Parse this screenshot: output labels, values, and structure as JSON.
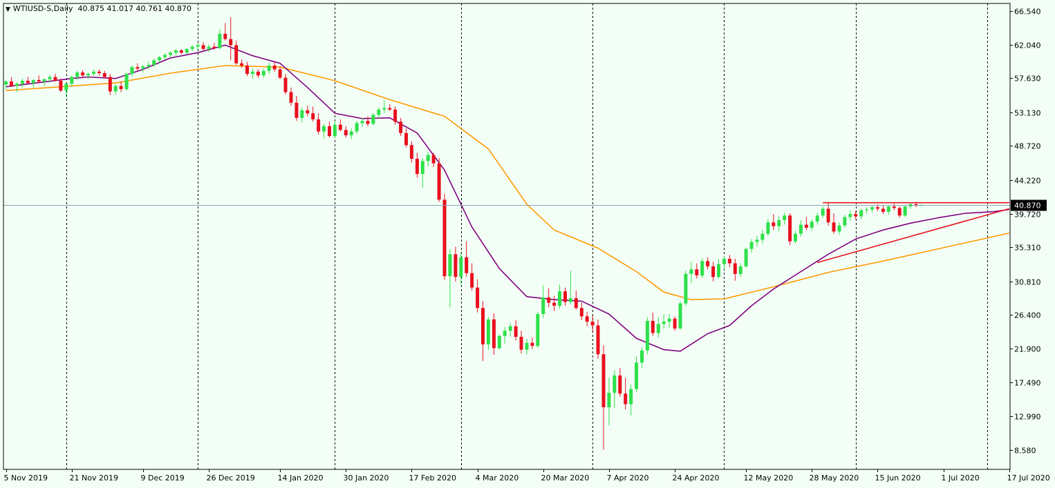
{
  "header": {
    "symbol_label": "WTIUSD-S,Daily",
    "ohlc": "40.875 41.017 40.761 40.870"
  },
  "colors": {
    "background": "#f3fff6",
    "bull": "#2fe04a",
    "bear": "#e8101e",
    "ma_fast": "#800080",
    "ma_slow": "#ff9900",
    "trendline": "#e8101e",
    "bid_line": "#8aa4b8",
    "axis": "#000000"
  },
  "chart_data": {
    "type": "candlestick",
    "y_ticks": [
      "66.540",
      "62.040",
      "57.630",
      "53.130",
      "48.720",
      "44.220",
      "39.720",
      "35.310",
      "30.810",
      "26.400",
      "21.900",
      "17.490",
      "12.990",
      "8.580"
    ],
    "ylim": [
      6.0,
      67.5
    ],
    "x_labels": [
      "5 Nov 2019",
      "21 Nov 2019",
      "9 Dec 2019",
      "26 Dec 2019",
      "14 Jan 2020",
      "30 Jan 2020",
      "17 Feb 2020",
      "4 Mar 2020",
      "20 Mar 2020",
      "7 Apr 2020",
      "24 Apr 2020",
      "12 May 2020",
      "28 May 2020",
      "15 Jun 2020",
      "1 Jul 2020",
      "17 Jul 2020"
    ],
    "label_index": [
      0,
      12,
      25,
      37,
      50,
      62,
      74,
      86,
      98,
      110,
      122,
      135,
      147,
      159,
      171,
      183
    ],
    "period_separator_index": [
      11,
      35,
      60,
      83,
      107,
      131,
      155,
      179
    ],
    "current_price": "40.870",
    "candles_ohlc": [
      [
        56.8,
        57.4,
        56.2,
        57.2
      ],
      [
        57.2,
        57.8,
        56.5,
        56.6
      ],
      [
        56.6,
        57.1,
        55.8,
        56.9
      ],
      [
        56.9,
        57.6,
        56.4,
        57.3
      ],
      [
        57.3,
        57.8,
        56.9,
        57.0
      ],
      [
        57.0,
        57.5,
        56.4,
        57.4
      ],
      [
        57.4,
        58.0,
        57.0,
        57.2
      ],
      [
        57.2,
        57.6,
        56.6,
        57.5
      ],
      [
        57.5,
        58.1,
        57.1,
        57.8
      ],
      [
        57.8,
        58.2,
        57.2,
        57.3
      ],
      [
        57.3,
        57.6,
        55.8,
        56.0
      ],
      [
        56.0,
        57.0,
        55.1,
        56.9
      ],
      [
        56.9,
        58.0,
        56.5,
        57.8
      ],
      [
        57.8,
        58.6,
        57.4,
        58.4
      ],
      [
        58.4,
        58.7,
        57.8,
        58.0
      ],
      [
        58.0,
        58.4,
        57.5,
        58.2
      ],
      [
        58.2,
        58.8,
        57.9,
        58.5
      ],
      [
        58.5,
        58.8,
        58.0,
        58.3
      ],
      [
        58.3,
        58.6,
        57.6,
        57.8
      ],
      [
        57.8,
        58.2,
        55.4,
        55.9
      ],
      [
        55.9,
        56.8,
        55.5,
        56.6
      ],
      [
        56.6,
        57.2,
        55.8,
        56.2
      ],
      [
        56.2,
        58.4,
        56.0,
        58.2
      ],
      [
        58.2,
        59.3,
        57.8,
        59.1
      ],
      [
        59.1,
        59.6,
        58.6,
        58.9
      ],
      [
        58.9,
        59.4,
        58.4,
        59.2
      ],
      [
        59.2,
        59.8,
        58.8,
        59.4
      ],
      [
        59.4,
        60.2,
        59.1,
        60.0
      ],
      [
        60.0,
        60.6,
        59.7,
        60.4
      ],
      [
        60.4,
        60.9,
        60.1,
        60.7
      ],
      [
        60.7,
        61.2,
        60.4,
        61.0
      ],
      [
        61.0,
        61.5,
        60.6,
        61.3
      ],
      [
        61.3,
        61.5,
        60.8,
        61.0
      ],
      [
        61.0,
        61.6,
        60.8,
        61.5
      ],
      [
        61.5,
        62.0,
        61.2,
        61.8
      ],
      [
        61.8,
        62.3,
        61.5,
        62.0
      ],
      [
        62.0,
        62.4,
        61.3,
        61.5
      ],
      [
        61.5,
        62.1,
        61.1,
        61.8
      ],
      [
        61.8,
        62.3,
        61.4,
        61.6
      ],
      [
        61.6,
        64.1,
        61.5,
        63.5
      ],
      [
        63.5,
        64.9,
        62.6,
        62.8
      ],
      [
        62.8,
        65.7,
        60.0,
        62.0
      ],
      [
        62.0,
        62.6,
        59.4,
        59.6
      ],
      [
        59.6,
        60.1,
        59.0,
        59.3
      ],
      [
        59.3,
        59.8,
        57.9,
        58.2
      ],
      [
        58.2,
        58.9,
        57.6,
        58.5
      ],
      [
        58.5,
        58.8,
        57.7,
        58.0
      ],
      [
        58.0,
        58.9,
        57.7,
        58.6
      ],
      [
        58.6,
        59.7,
        58.2,
        59.3
      ],
      [
        59.3,
        59.8,
        58.5,
        58.8
      ],
      [
        58.8,
        59.2,
        57.5,
        57.7
      ],
      [
        57.7,
        58.2,
        55.5,
        55.8
      ],
      [
        55.8,
        56.4,
        54.0,
        54.4
      ],
      [
        54.4,
        55.3,
        52.0,
        52.4
      ],
      [
        52.4,
        53.8,
        51.8,
        53.4
      ],
      [
        53.4,
        54.0,
        52.6,
        53.0
      ],
      [
        53.0,
        53.9,
        51.9,
        52.2
      ],
      [
        52.2,
        53.0,
        50.2,
        50.6
      ],
      [
        50.6,
        51.6,
        49.7,
        51.3
      ],
      [
        51.3,
        51.9,
        49.8,
        50.0
      ],
      [
        50.0,
        52.0,
        49.7,
        51.5
      ],
      [
        51.5,
        52.2,
        50.6,
        50.8
      ],
      [
        50.8,
        51.3,
        49.8,
        50.1
      ],
      [
        50.1,
        51.0,
        49.6,
        50.6
      ],
      [
        50.6,
        52.0,
        50.3,
        51.7
      ],
      [
        51.7,
        52.4,
        51.2,
        52.0
      ],
      [
        52.0,
        52.6,
        51.3,
        51.6
      ],
      [
        51.6,
        53.0,
        51.4,
        52.8
      ],
      [
        52.8,
        53.8,
        52.3,
        53.5
      ],
      [
        53.5,
        54.7,
        53.0,
        53.7
      ],
      [
        53.7,
        54.2,
        53.3,
        53.5
      ],
      [
        53.5,
        53.9,
        51.5,
        51.9
      ],
      [
        51.9,
        52.4,
        50.0,
        50.4
      ],
      [
        50.4,
        51.0,
        48.5,
        48.8
      ],
      [
        48.8,
        49.3,
        46.5,
        47.0
      ],
      [
        47.0,
        47.8,
        44.5,
        45.0
      ],
      [
        45.0,
        47.1,
        43.2,
        46.7
      ],
      [
        46.7,
        47.9,
        46.0,
        47.5
      ],
      [
        47.5,
        47.8,
        45.9,
        46.4
      ],
      [
        46.4,
        47.1,
        41.3,
        41.6
      ],
      [
        41.6,
        42.4,
        31.0,
        31.5
      ],
      [
        31.5,
        35.1,
        27.4,
        34.4
      ],
      [
        34.4,
        35.4,
        30.8,
        31.4
      ],
      [
        31.4,
        34.6,
        30.4,
        34.0
      ],
      [
        34.0,
        36.1,
        31.4,
        31.9
      ],
      [
        31.9,
        33.2,
        29.6,
        30.0
      ],
      [
        30.0,
        31.1,
        26.7,
        27.3
      ],
      [
        27.3,
        28.2,
        20.3,
        22.5
      ],
      [
        22.5,
        26.1,
        21.8,
        25.8
      ],
      [
        25.8,
        26.6,
        21.1,
        22.0
      ],
      [
        22.0,
        23.8,
        21.8,
        23.6
      ],
      [
        23.6,
        24.8,
        22.6,
        24.3
      ],
      [
        24.3,
        25.3,
        23.5,
        24.9
      ],
      [
        24.9,
        25.7,
        23.0,
        23.5
      ],
      [
        23.5,
        24.3,
        21.3,
        21.8
      ],
      [
        21.8,
        23.2,
        21.2,
        22.7
      ],
      [
        22.7,
        23.4,
        21.9,
        22.3
      ],
      [
        22.3,
        26.8,
        22.0,
        26.5
      ],
      [
        26.5,
        30.3,
        26.0,
        28.7
      ],
      [
        28.7,
        29.9,
        27.4,
        28.0
      ],
      [
        28.0,
        28.9,
        26.9,
        27.6
      ],
      [
        27.6,
        30.4,
        27.2,
        29.5
      ],
      [
        29.5,
        30.0,
        27.6,
        28.1
      ],
      [
        28.1,
        32.2,
        27.8,
        28.6
      ],
      [
        28.6,
        29.6,
        27.1,
        27.3
      ],
      [
        27.3,
        28.0,
        25.7,
        26.2
      ],
      [
        26.2,
        26.8,
        24.9,
        25.5
      ],
      [
        25.5,
        26.3,
        24.2,
        25.0
      ],
      [
        25.0,
        25.8,
        20.6,
        21.2
      ],
      [
        21.2,
        22.4,
        8.6,
        14.2
      ],
      [
        14.2,
        18.1,
        11.8,
        16.1
      ],
      [
        16.1,
        19.1,
        14.1,
        18.4
      ],
      [
        18.4,
        19.4,
        15.6,
        16.0
      ],
      [
        16.0,
        18.1,
        13.9,
        14.6
      ],
      [
        14.6,
        17.2,
        13.1,
        16.6
      ],
      [
        16.6,
        20.9,
        16.2,
        20.1
      ],
      [
        20.1,
        22.1,
        19.4,
        21.7
      ],
      [
        21.7,
        26.1,
        21.2,
        25.6
      ],
      [
        25.6,
        26.7,
        23.6,
        24.0
      ],
      [
        24.0,
        26.1,
        23.4,
        25.2
      ],
      [
        25.2,
        26.5,
        24.6,
        25.5
      ],
      [
        25.5,
        26.5,
        24.7,
        25.9
      ],
      [
        25.9,
        26.2,
        24.3,
        24.6
      ],
      [
        24.6,
        28.2,
        24.4,
        27.9
      ],
      [
        27.9,
        32.2,
        27.6,
        31.8
      ],
      [
        31.8,
        33.4,
        30.6,
        32.4
      ],
      [
        32.4,
        33.2,
        31.2,
        31.6
      ],
      [
        31.6,
        33.9,
        31.3,
        33.5
      ],
      [
        33.5,
        34.0,
        32.4,
        32.8
      ],
      [
        32.8,
        33.4,
        30.8,
        31.4
      ],
      [
        31.4,
        33.8,
        31.2,
        33.1
      ],
      [
        33.1,
        34.2,
        32.4,
        33.8
      ],
      [
        33.8,
        34.3,
        32.7,
        33.2
      ],
      [
        33.2,
        33.8,
        30.9,
        31.8
      ],
      [
        31.8,
        33.2,
        31.4,
        32.8
      ],
      [
        32.8,
        35.3,
        32.6,
        35.1
      ],
      [
        35.1,
        36.4,
        34.6,
        36.0
      ],
      [
        36.0,
        36.8,
        35.4,
        36.3
      ],
      [
        36.3,
        37.6,
        35.8,
        37.1
      ],
      [
        37.1,
        39.1,
        36.8,
        38.6
      ],
      [
        38.6,
        39.7,
        37.6,
        38.1
      ],
      [
        38.1,
        39.4,
        37.4,
        38.9
      ],
      [
        38.9,
        39.9,
        38.3,
        39.5
      ],
      [
        39.5,
        39.8,
        35.6,
        36.1
      ],
      [
        36.1,
        37.5,
        35.8,
        37.1
      ],
      [
        37.1,
        38.9,
        36.7,
        38.3
      ],
      [
        38.3,
        39.3,
        37.6,
        37.9
      ],
      [
        37.9,
        39.0,
        37.5,
        38.7
      ],
      [
        38.7,
        39.9,
        38.3,
        39.5
      ],
      [
        39.5,
        40.7,
        39.2,
        40.4
      ],
      [
        40.4,
        41.2,
        38.2,
        38.6
      ],
      [
        38.6,
        39.8,
        37.1,
        37.4
      ],
      [
        37.4,
        38.6,
        37.0,
        38.2
      ],
      [
        38.2,
        39.6,
        37.9,
        39.3
      ],
      [
        39.3,
        40.2,
        38.8,
        39.7
      ],
      [
        39.7,
        40.1,
        39.0,
        39.4
      ],
      [
        39.4,
        40.4,
        39.0,
        40.2
      ],
      [
        40.2,
        40.6,
        39.8,
        40.3
      ],
      [
        40.3,
        40.8,
        39.9,
        40.6
      ],
      [
        40.6,
        41.0,
        40.1,
        40.4
      ],
      [
        40.4,
        40.8,
        39.7,
        40.0
      ],
      [
        40.0,
        40.9,
        39.6,
        40.7
      ],
      [
        40.7,
        41.1,
        40.2,
        40.5
      ],
      [
        40.5,
        40.7,
        39.2,
        39.5
      ],
      [
        39.5,
        40.9,
        39.3,
        40.7
      ],
      [
        40.7,
        41.2,
        40.4,
        41.0
      ],
      [
        41.0,
        41.3,
        40.6,
        40.8
      ],
      [
        40.8,
        41.0,
        40.7,
        40.9
      ]
    ],
    "ma_fast_points": [
      [
        0,
        56.5
      ],
      [
        12,
        57.6
      ],
      [
        15,
        57.8
      ],
      [
        20,
        57.6
      ],
      [
        25,
        58.8
      ],
      [
        30,
        60.3
      ],
      [
        35,
        61.0
      ],
      [
        40,
        62.0
      ],
      [
        45,
        60.6
      ],
      [
        50,
        59.6
      ],
      [
        55,
        56.4
      ],
      [
        60,
        53.0
      ],
      [
        65,
        52.3
      ],
      [
        70,
        52.4
      ],
      [
        75,
        50.4
      ],
      [
        80,
        45.5
      ],
      [
        85,
        38.0
      ],
      [
        90,
        32.5
      ],
      [
        95,
        28.8
      ],
      [
        100,
        28.4
      ],
      [
        105,
        28.2
      ],
      [
        110,
        26.5
      ],
      [
        115,
        23.3
      ],
      [
        120,
        21.8
      ],
      [
        123,
        21.6
      ],
      [
        128,
        23.9
      ],
      [
        132,
        25.0
      ],
      [
        136,
        27.6
      ],
      [
        140,
        29.8
      ],
      [
        145,
        32.1
      ],
      [
        150,
        34.4
      ],
      [
        155,
        36.4
      ],
      [
        160,
        37.6
      ],
      [
        165,
        38.5
      ],
      [
        170,
        39.2
      ],
      [
        175,
        39.8
      ],
      [
        180,
        40.0
      ],
      [
        183,
        40.3
      ]
    ],
    "ma_slow_points": [
      [
        0,
        56.0
      ],
      [
        10,
        56.5
      ],
      [
        20,
        57.0
      ],
      [
        30,
        58.3
      ],
      [
        40,
        59.3
      ],
      [
        50,
        59.1
      ],
      [
        60,
        57.3
      ],
      [
        70,
        54.8
      ],
      [
        80,
        52.6
      ],
      [
        88,
        48.3
      ],
      [
        95,
        41.0
      ],
      [
        100,
        37.6
      ],
      [
        108,
        35.2
      ],
      [
        115,
        32.1
      ],
      [
        120,
        29.4
      ],
      [
        125,
        28.4
      ],
      [
        131,
        28.5
      ],
      [
        140,
        30.1
      ],
      [
        150,
        32.0
      ],
      [
        160,
        33.5
      ],
      [
        170,
        35.1
      ],
      [
        180,
        36.7
      ],
      [
        183,
        37.2
      ]
    ],
    "trendlines": [
      {
        "from": [
          148,
          33.3
        ],
        "to": [
          183,
          40.4
        ]
      },
      {
        "from": [
          149,
          41.2
        ],
        "to": [
          183,
          41.2
        ]
      }
    ]
  }
}
